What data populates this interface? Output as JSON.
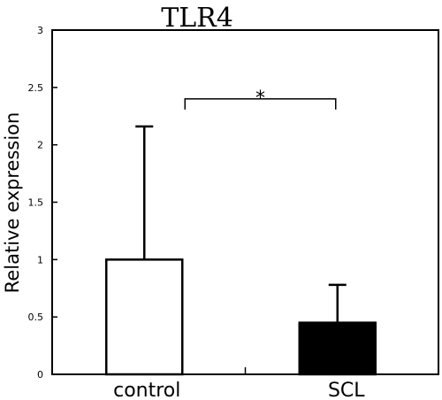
{
  "chart_data": {
    "type": "bar",
    "title": "TLR4",
    "ylabel": "Relative expression",
    "xlabel": "",
    "categories": [
      "control",
      "SCL"
    ],
    "values": [
      1.0,
      0.45
    ],
    "error_upper": [
      2.16,
      0.78
    ],
    "bar_colors": [
      "#ffffff",
      "#000000"
    ],
    "ylim": [
      0,
      3
    ],
    "yticks": [
      0,
      0.5,
      1,
      1.5,
      2,
      2.5,
      3
    ],
    "ytick_labels": [
      "0",
      "0.5",
      "1",
      "1.5",
      "2",
      "2.5",
      "3"
    ],
    "significance": {
      "label": "*",
      "between": [
        0,
        1
      ],
      "y": 2.4
    },
    "grid": false,
    "legend": "none"
  }
}
